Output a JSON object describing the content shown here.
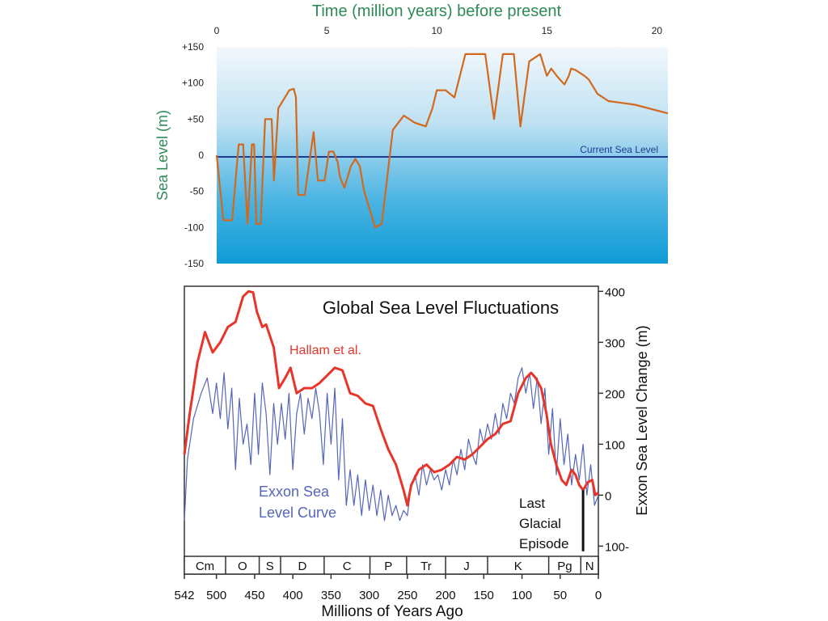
{
  "chart_data": [
    {
      "type": "line",
      "title": "Time (million years) before present",
      "xlabel": "Time (million years) before present",
      "ylabel": "Sea Level  (m)",
      "xlim": [
        0,
        20.5
      ],
      "ylim": [
        -150,
        150
      ],
      "x_ticks": [
        0,
        5,
        10,
        15,
        20
      ],
      "y_ticks": [
        150,
        100,
        50,
        0,
        -50,
        -100,
        -150
      ],
      "y_tick_labels": [
        "+150",
        "+100",
        "+50",
        "0",
        "-50",
        "-100",
        "-150"
      ],
      "reference_line": {
        "label": "Current Sea Level",
        "y": 0
      },
      "colors": {
        "line": "#d2691e",
        "title": "#2e8b57",
        "reference": "#1f3a93",
        "fill_top": "#f2f8fc",
        "fill_bottom": "#0e9bd6"
      },
      "series": [
        {
          "x": [
            0,
            0.3,
            0.7,
            1.0,
            1.2,
            1.4,
            1.6,
            1.7,
            1.8,
            2.0,
            2.2,
            2.5,
            2.6,
            2.8,
            3.3,
            3.5,
            3.6,
            3.7,
            4.0,
            4.4,
            4.6,
            4.9,
            5.1,
            5.3,
            5.5,
            5.6,
            5.8,
            5.9,
            6.1,
            6.3,
            6.5,
            6.7,
            7.2,
            7.5,
            8.0,
            8.5,
            9.0,
            9.5,
            9.8,
            10.0,
            10.2,
            10.4,
            10.8,
            11.3,
            11.7,
            12.2,
            12.6,
            13.0,
            13.5,
            13.8,
            14.2,
            14.7,
            14.9,
            15.0,
            15.2,
            15.5,
            15.8,
            16.0,
            16.1,
            16.3,
            16.7,
            16.9,
            17.1,
            17.3,
            17.8,
            19.0,
            20.5
          ],
          "values": [
            0,
            -90,
            -90,
            15,
            15,
            -95,
            15,
            15,
            -95,
            -95,
            50,
            50,
            -35,
            65,
            90,
            92,
            80,
            -55,
            -55,
            32,
            -35,
            -35,
            5,
            5,
            -10,
            -30,
            -45,
            -35,
            -15,
            -5,
            -15,
            -50,
            -100,
            -95,
            35,
            55,
            45,
            40,
            65,
            90,
            90,
            90,
            80,
            140,
            140,
            140,
            50,
            140,
            140,
            40,
            130,
            140,
            120,
            110,
            120,
            108,
            98,
            110,
            120,
            118,
            110,
            105,
            95,
            85,
            75,
            70,
            58
          ]
        }
      ]
    },
    {
      "type": "line",
      "title": "Global Sea Level Fluctuations",
      "xlabel": "Millions of Years Ago",
      "ylabel": "Exxon Sea Level Change (m)",
      "xlim": [
        542,
        0
      ],
      "ylim": [
        -120,
        410
      ],
      "x_ticks": [
        542,
        500,
        450,
        400,
        350,
        300,
        250,
        200,
        150,
        100,
        50,
        0
      ],
      "y_ticks": [
        400,
        300,
        200,
        100,
        0,
        -100
      ],
      "y_tick_labels": [
        "400",
        "300",
        "200",
        "100",
        "0",
        "100-"
      ],
      "periods": [
        {
          "label": "Cm",
          "start": 542,
          "end": 488
        },
        {
          "label": "O",
          "start": 488,
          "end": 444
        },
        {
          "label": "S",
          "start": 444,
          "end": 416
        },
        {
          "label": "D",
          "start": 416,
          "end": 359
        },
        {
          "label": "C",
          "start": 359,
          "end": 299
        },
        {
          "label": "P",
          "start": 299,
          "end": 251
        },
        {
          "label": "Tr",
          "start": 251,
          "end": 200
        },
        {
          "label": "J",
          "start": 200,
          "end": 145
        },
        {
          "label": "K",
          "start": 145,
          "end": 65
        },
        {
          "label": "Pg",
          "start": 65,
          "end": 23
        },
        {
          "label": "N",
          "start": 23,
          "end": 0
        }
      ],
      "annotation": {
        "text_lines": [
          "Last",
          "Glacial",
          "Episode"
        ],
        "x": 20,
        "y_from": 10,
        "y_to": -110
      },
      "series": [
        {
          "name": "Hallam et al.",
          "color": "#e8352a",
          "x": [
            542,
            535,
            525,
            515,
            505,
            495,
            485,
            475,
            465,
            458,
            452,
            447,
            440,
            435,
            425,
            418,
            410,
            403,
            395,
            385,
            375,
            365,
            355,
            345,
            335,
            325,
            315,
            305,
            295,
            285,
            275,
            265,
            255,
            250,
            245,
            235,
            225,
            215,
            205,
            195,
            185,
            175,
            165,
            155,
            145,
            135,
            125,
            115,
            105,
            95,
            88,
            82,
            75,
            68,
            62,
            55,
            48,
            42,
            35,
            30,
            25,
            20,
            14,
            8,
            4,
            0
          ],
          "values": [
            80,
            160,
            260,
            320,
            280,
            300,
            330,
            340,
            390,
            400,
            398,
            360,
            330,
            335,
            290,
            210,
            230,
            250,
            200,
            210,
            210,
            220,
            235,
            250,
            245,
            200,
            195,
            180,
            175,
            130,
            90,
            60,
            10,
            -20,
            20,
            50,
            60,
            45,
            50,
            60,
            75,
            70,
            80,
            95,
            110,
            120,
            140,
            145,
            200,
            230,
            240,
            230,
            210,
            160,
            100,
            60,
            30,
            20,
            50,
            40,
            20,
            10,
            25,
            30,
            0,
            5
          ]
        },
        {
          "name": "Exxon Sea Level Curve",
          "color": "#5566b8",
          "x": [
            542,
            538,
            530,
            520,
            512,
            505,
            500,
            495,
            490,
            485,
            480,
            475,
            470,
            465,
            460,
            455,
            450,
            445,
            440,
            435,
            430,
            425,
            420,
            415,
            410,
            405,
            400,
            395,
            390,
            385,
            380,
            375,
            370,
            365,
            360,
            355,
            350,
            345,
            340,
            335,
            330,
            325,
            320,
            315,
            310,
            305,
            300,
            295,
            290,
            285,
            280,
            275,
            270,
            265,
            260,
            255,
            250,
            245,
            240,
            235,
            230,
            225,
            220,
            215,
            210,
            205,
            200,
            195,
            190,
            185,
            180,
            175,
            170,
            165,
            160,
            155,
            150,
            145,
            140,
            135,
            130,
            125,
            120,
            115,
            110,
            105,
            100,
            95,
            90,
            85,
            80,
            75,
            70,
            65,
            60,
            55,
            50,
            45,
            40,
            35,
            30,
            25,
            20,
            15,
            10,
            5,
            0
          ],
          "values": [
            -50,
            70,
            150,
            200,
            230,
            160,
            220,
            150,
            240,
            130,
            210,
            50,
            190,
            100,
            140,
            60,
            200,
            80,
            220,
            160,
            40,
            180,
            100,
            180,
            110,
            200,
            50,
            160,
            200,
            120,
            190,
            150,
            210,
            160,
            60,
            200,
            100,
            210,
            30,
            150,
            -20,
            50,
            -20,
            40,
            -40,
            30,
            -30,
            20,
            -40,
            10,
            -50,
            0,
            -40,
            -20,
            -50,
            -30,
            -40,
            20,
            40,
            0,
            60,
            20,
            50,
            30,
            40,
            10,
            50,
            20,
            70,
            40,
            90,
            50,
            110,
            80,
            60,
            130,
            100,
            140,
            110,
            160,
            120,
            180,
            150,
            200,
            180,
            230,
            250,
            200,
            240,
            170,
            230,
            140,
            210,
            80,
            170,
            40,
            150,
            60,
            120,
            20,
            80,
            30,
            100,
            0,
            60,
            -20,
            0
          ]
        }
      ]
    }
  ]
}
